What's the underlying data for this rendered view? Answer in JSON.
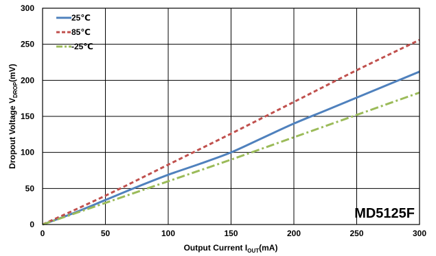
{
  "chart_data": {
    "type": "line",
    "xlabel": {
      "main": "Output Current I",
      "sub": "OUT",
      "unit": "(mA)"
    },
    "ylabel": {
      "main": "Dropout Voltage V",
      "sub": "DROP",
      "unit": "(mV)"
    },
    "xlim": [
      0,
      300
    ],
    "ylim": [
      0,
      300
    ],
    "xticks": [
      "0",
      "50",
      "100",
      "150",
      "200",
      "250",
      "300"
    ],
    "yticks": [
      "0",
      "50",
      "100",
      "150",
      "200",
      "250",
      "300"
    ],
    "grid": true,
    "legend_position": "top-left",
    "annotation": "MD5125F",
    "series": [
      {
        "name": "25℃",
        "color": "#4f81bd",
        "dash": "solid",
        "x": [
          0,
          25,
          50,
          75,
          100,
          125,
          150,
          175,
          200,
          225,
          250,
          275,
          300
        ],
        "y": [
          0,
          16,
          34,
          52,
          69,
          84,
          100,
          120,
          140,
          158,
          176,
          194,
          212
        ]
      },
      {
        "name": "85℃",
        "color": "#c0504d",
        "dash": "dash",
        "x": [
          0,
          50,
          100,
          150,
          200,
          250,
          300
        ],
        "y": [
          0,
          40,
          83,
          126,
          170,
          214,
          256
        ]
      },
      {
        "name": "-25℃",
        "color": "#9bbb59",
        "dash": "dashdot",
        "x": [
          0,
          50,
          100,
          150,
          200,
          250,
          300
        ],
        "y": [
          0,
          30,
          60,
          90,
          121,
          152,
          183
        ]
      }
    ]
  }
}
